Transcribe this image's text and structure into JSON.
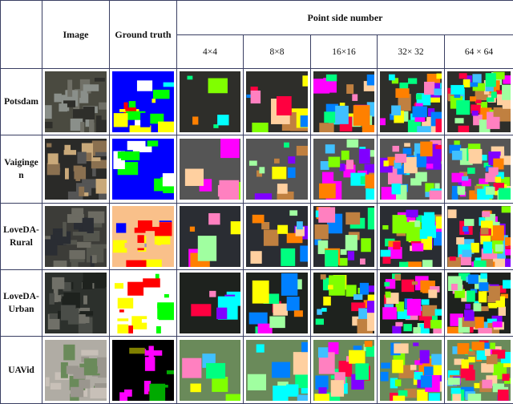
{
  "header": {
    "image": "Image",
    "ground_truth": "Ground truth",
    "point_side_number": "Point side number",
    "sizes": [
      "4×4",
      "8×8",
      "16×16",
      "32× 32",
      "64 × 64"
    ]
  },
  "rows": [
    {
      "label": "Potsdam"
    },
    {
      "label": "Vaiginge n"
    },
    {
      "label": "LoveDA-Rural"
    },
    {
      "label": "LoveDA-Urban"
    },
    {
      "label": "UAVid"
    }
  ],
  "colors": {
    "border": "#3a3f63",
    "gt_potsdam": [
      "#0000ff",
      "#00ff00",
      "#00ffff",
      "#ffffff",
      "#ff0000",
      "#ffff00"
    ],
    "gt_vaihingen": [
      "#0000ff",
      "#ffffff",
      "#00ff00"
    ],
    "gt_loveda_rural": [
      "#f9c08a",
      "#0000ff",
      "#9a87c8",
      "#ffff00",
      "#ff0000"
    ],
    "gt_loveda_urban": [
      "#ffffff",
      "#ffff00",
      "#ff0000",
      "#00ff00"
    ],
    "gt_uavid": [
      "#000000",
      "#800000",
      "#00aa00",
      "#808000",
      "#ff00ff"
    ]
  }
}
